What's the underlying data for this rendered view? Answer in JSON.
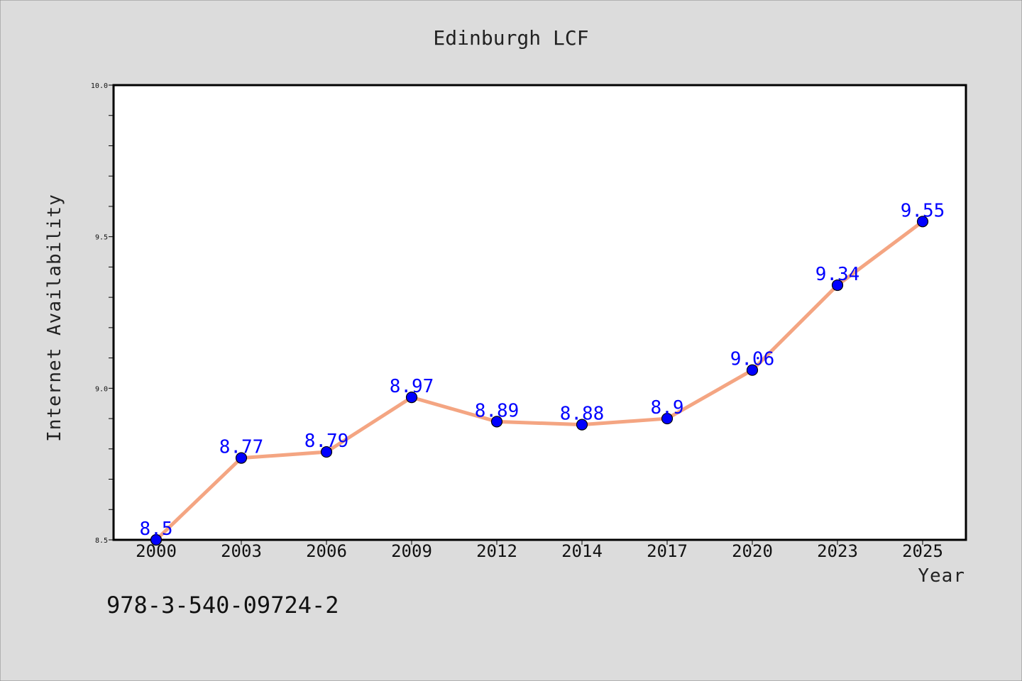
{
  "chart_data": {
    "type": "line",
    "title": "Edinburgh LCF",
    "xlabel": "Year",
    "ylabel": "Internet Availability",
    "categories": [
      "2000",
      "2003",
      "2006",
      "2009",
      "2012",
      "2014",
      "2017",
      "2020",
      "2023",
      "2025"
    ],
    "series": [
      {
        "values": [
          8.5,
          8.77,
          8.79,
          8.97,
          8.89,
          8.88,
          8.9,
          9.06,
          9.34,
          9.55
        ],
        "data_labels": [
          "8.5",
          "8.77",
          "8.79",
          "8.97",
          "8.89",
          "8.88",
          "8.9",
          "9.06",
          "9.34",
          "9.55"
        ],
        "line_color": "#f4a582",
        "marker_color": "#0000ff"
      }
    ],
    "ylim": [
      8.5,
      10.0
    ],
    "yticks": [
      "8.5",
      "9.0",
      "9.5",
      "10.0"
    ],
    "grid": false,
    "legend": "none"
  },
  "footer_text": "978-3-540-09724-2",
  "colors": {
    "background": "#dcdcdc",
    "plot_background": "#ffffff",
    "axes": "#000000",
    "data_label": "#0000ff"
  }
}
